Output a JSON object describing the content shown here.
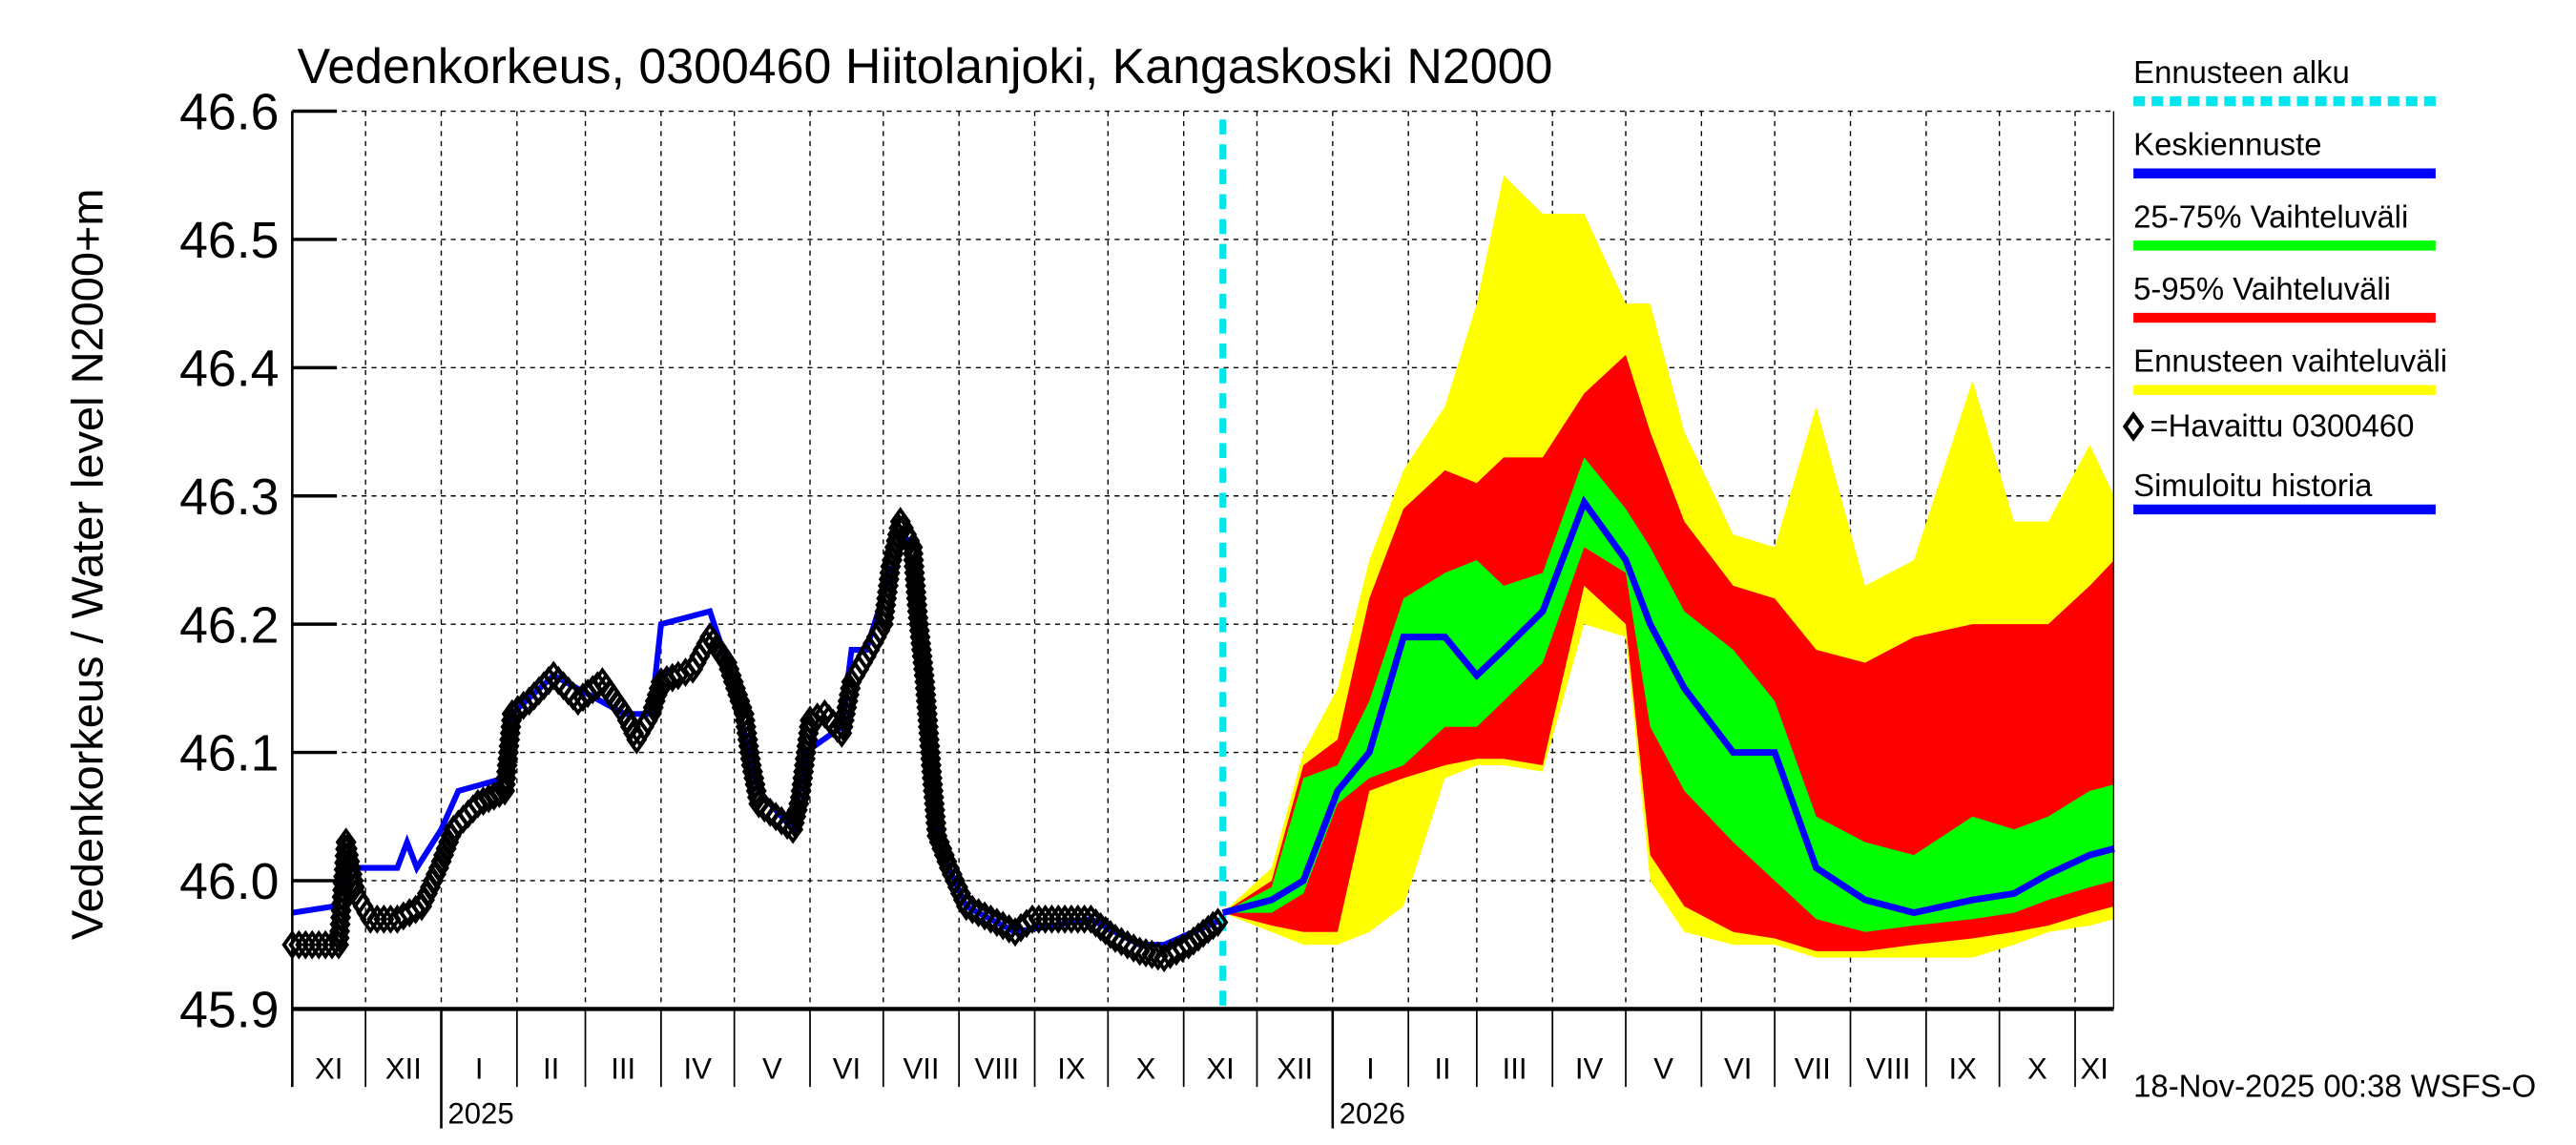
{
  "chart_data": {
    "type": "area",
    "title": "Vedenkorkeus, 0300460 Hiitolanjoki, Kangaskoski N2000",
    "ylabel": "Vedenkorkeus / Water level    N2000+m",
    "xlabel": "",
    "ylim": [
      45.9,
      46.6
    ],
    "yticks": [
      "46.6",
      "46.5",
      "46.4",
      "46.3",
      "46.2",
      "46.1",
      "46.0",
      "45.9"
    ],
    "xlim": [
      "2024-11-01",
      "2026-11-17"
    ],
    "month_labels": [
      "XI",
      "XII",
      "I",
      "II",
      "III",
      "IV",
      "V",
      "VI",
      "VII",
      "VIII",
      "IX",
      "X",
      "XI",
      "XII",
      "I",
      "II",
      "III",
      "IV",
      "V",
      "VI",
      "VII",
      "VIII",
      "IX",
      "X",
      "XI"
    ],
    "year_labels": [
      {
        "year": "2025",
        "month": "2025-01-01"
      },
      {
        "year": "2026",
        "month": "2026-01-01"
      }
    ],
    "grid": true,
    "legend_position": "right",
    "forecast_start": "2025-11-17",
    "colors": {
      "forecast_start": "#00e5ee",
      "median": "#0000ff",
      "band_25_75": "#00ff00",
      "band_5_95": "#ff0000",
      "band_full": "#ffff00",
      "observed": "#000000",
      "simulated": "#0000ff"
    },
    "legend": [
      {
        "label": "Ennusteen alku",
        "key": "forecast_start",
        "style": "dashed"
      },
      {
        "label": "Keskiennuste",
        "key": "median",
        "style": "line"
      },
      {
        "label": "25-75% Vaihteluväli",
        "key": "band_25_75",
        "style": "line"
      },
      {
        "label": "5-95% Vaihteluväli",
        "key": "band_5_95",
        "style": "line"
      },
      {
        "label": "Ennusteen vaihteluväli",
        "key": "band_full",
        "style": "line"
      },
      {
        "label": "=Havaittu 0300460",
        "key": "observed",
        "style": "diamond"
      },
      {
        "label": "Simuloitu historia",
        "key": "simulated",
        "style": "line"
      }
    ],
    "observed": [
      [
        "2024-11-01",
        45.95
      ],
      [
        "2024-11-20",
        45.95
      ],
      [
        "2024-11-23",
        46.03
      ],
      [
        "2024-11-27",
        45.99
      ],
      [
        "2024-12-03",
        45.97
      ],
      [
        "2024-12-14",
        45.97
      ],
      [
        "2024-12-24",
        45.98
      ],
      [
        "2024-12-31",
        46.01
      ],
      [
        "2025-01-06",
        46.04
      ],
      [
        "2025-01-16",
        46.06
      ],
      [
        "2025-01-27",
        46.07
      ],
      [
        "2025-01-30",
        46.13
      ],
      [
        "2025-02-06",
        46.14
      ],
      [
        "2025-02-16",
        46.16
      ],
      [
        "2025-02-26",
        46.14
      ],
      [
        "2025-03-08",
        46.155
      ],
      [
        "2025-03-17",
        46.13
      ],
      [
        "2025-03-22",
        46.11
      ],
      [
        "2025-03-28",
        46.13
      ],
      [
        "2025-04-01",
        46.155
      ],
      [
        "2025-04-08",
        46.16
      ],
      [
        "2025-04-14",
        46.165
      ],
      [
        "2025-04-21",
        46.19
      ],
      [
        "2025-04-28",
        46.17
      ],
      [
        "2025-05-05",
        46.13
      ],
      [
        "2025-05-08",
        46.09
      ],
      [
        "2025-05-11",
        46.06
      ],
      [
        "2025-05-18",
        46.05
      ],
      [
        "2025-05-25",
        46.04
      ],
      [
        "2025-05-28",
        46.065
      ],
      [
        "2025-06-01",
        46.125
      ],
      [
        "2025-06-07",
        46.13
      ],
      [
        "2025-06-14",
        46.115
      ],
      [
        "2025-06-18",
        46.155
      ],
      [
        "2025-06-24",
        46.175
      ],
      [
        "2025-07-01",
        46.2
      ],
      [
        "2025-07-04",
        46.245
      ],
      [
        "2025-07-08",
        46.28
      ],
      [
        "2025-07-13",
        46.26
      ],
      [
        "2025-07-15",
        46.21
      ],
      [
        "2025-07-18",
        46.155
      ],
      [
        "2025-07-21",
        46.08
      ],
      [
        "2025-07-23",
        46.035
      ],
      [
        "2025-07-28",
        46.01
      ],
      [
        "2025-08-04",
        45.98
      ],
      [
        "2025-08-14",
        45.97
      ],
      [
        "2025-08-24",
        45.96
      ],
      [
        "2025-08-31",
        45.97
      ],
      [
        "2025-09-24",
        45.97
      ],
      [
        "2025-10-04",
        45.955
      ],
      [
        "2025-10-14",
        45.945
      ],
      [
        "2025-10-24",
        45.94
      ],
      [
        "2025-11-03",
        45.95
      ],
      [
        "2025-11-13",
        45.965
      ],
      [
        "2025-11-17",
        45.97
      ]
    ],
    "simulated": [
      [
        "2024-11-01",
        45.975
      ],
      [
        "2024-11-18",
        45.98
      ],
      [
        "2024-11-25",
        46.01
      ],
      [
        "2024-12-14",
        46.01
      ],
      [
        "2024-12-18",
        46.03
      ],
      [
        "2024-12-22",
        46.01
      ],
      [
        "2025-01-01",
        46.04
      ],
      [
        "2025-01-08",
        46.07
      ],
      [
        "2025-01-27",
        46.08
      ],
      [
        "2025-01-30",
        46.13
      ],
      [
        "2025-02-16",
        46.16
      ],
      [
        "2025-03-17",
        46.13
      ],
      [
        "2025-03-28",
        46.13
      ],
      [
        "2025-04-01",
        46.2
      ],
      [
        "2025-04-21",
        46.21
      ],
      [
        "2025-04-28",
        46.17
      ],
      [
        "2025-05-11",
        46.07
      ],
      [
        "2025-05-25",
        46.04
      ],
      [
        "2025-05-30",
        46.1
      ],
      [
        "2025-06-14",
        46.12
      ],
      [
        "2025-06-18",
        46.18
      ],
      [
        "2025-06-24",
        46.18
      ],
      [
        "2025-07-04",
        46.24
      ],
      [
        "2025-07-10",
        46.27
      ],
      [
        "2025-07-18",
        46.18
      ],
      [
        "2025-07-23",
        46.03
      ],
      [
        "2025-08-04",
        45.98
      ],
      [
        "2025-08-24",
        45.96
      ],
      [
        "2025-09-24",
        45.97
      ],
      [
        "2025-10-14",
        45.95
      ],
      [
        "2025-10-24",
        45.95
      ],
      [
        "2025-11-17",
        45.97
      ]
    ],
    "forecast": {
      "dates": [
        "2025-11-17",
        "2025-12-07",
        "2025-12-20",
        "2026-01-03",
        "2026-01-16",
        "2026-01-30",
        "2026-02-16",
        "2026-03-01",
        "2026-03-12",
        "2026-03-28",
        "2026-04-14",
        "2026-05-01",
        "2026-05-11",
        "2026-05-25",
        "2026-06-14",
        "2026-07-01",
        "2026-07-18",
        "2026-08-07",
        "2026-08-27",
        "2026-09-20",
        "2026-10-07",
        "2026-10-21",
        "2026-11-07",
        "2026-11-17"
      ],
      "min": [
        45.975,
        45.96,
        45.95,
        45.95,
        45.96,
        45.98,
        46.08,
        46.09,
        46.09,
        46.085,
        46.2,
        46.19,
        46.0,
        45.96,
        45.95,
        45.95,
        45.94,
        45.94,
        45.94,
        45.94,
        45.95,
        45.96,
        45.965,
        45.97
      ],
      "p5": [
        45.975,
        45.965,
        45.96,
        45.96,
        46.07,
        46.08,
        46.09,
        46.095,
        46.095,
        46.09,
        46.23,
        46.2,
        46.02,
        45.98,
        45.96,
        45.955,
        45.945,
        45.945,
        45.95,
        45.955,
        45.96,
        45.965,
        45.975,
        45.98
      ],
      "p25": [
        45.975,
        45.975,
        45.99,
        46.06,
        46.08,
        46.09,
        46.12,
        46.12,
        46.14,
        46.17,
        46.26,
        46.24,
        46.12,
        46.07,
        46.03,
        46.0,
        45.97,
        45.96,
        45.965,
        45.97,
        45.975,
        45.985,
        45.995,
        46.0
      ],
      "median": [
        45.975,
        45.985,
        46.0,
        46.07,
        46.1,
        46.19,
        46.19,
        46.16,
        46.18,
        46.21,
        46.295,
        46.25,
        46.2,
        46.15,
        46.1,
        46.1,
        46.01,
        45.985,
        45.975,
        45.985,
        45.99,
        46.005,
        46.02,
        46.025
      ],
      "p75": [
        45.975,
        45.995,
        46.08,
        46.09,
        46.14,
        46.22,
        46.24,
        46.25,
        46.23,
        46.24,
        46.33,
        46.29,
        46.26,
        46.21,
        46.18,
        46.14,
        46.05,
        46.03,
        46.02,
        46.05,
        46.04,
        46.05,
        46.07,
        46.075
      ],
      "p95": [
        45.975,
        46.0,
        46.09,
        46.11,
        46.22,
        46.29,
        46.32,
        46.31,
        46.33,
        46.33,
        46.38,
        46.41,
        46.35,
        46.28,
        46.23,
        46.22,
        46.18,
        46.17,
        46.19,
        46.2,
        46.2,
        46.2,
        46.23,
        46.25
      ],
      "max": [
        45.975,
        46.01,
        46.1,
        46.15,
        46.25,
        46.32,
        46.37,
        46.45,
        46.55,
        46.52,
        46.52,
        46.45,
        46.45,
        46.35,
        46.27,
        46.26,
        46.37,
        46.23,
        46.25,
        46.39,
        46.28,
        46.28,
        46.34,
        46.3
      ]
    }
  },
  "footer": "18-Nov-2025 00:38 WSFS-O"
}
